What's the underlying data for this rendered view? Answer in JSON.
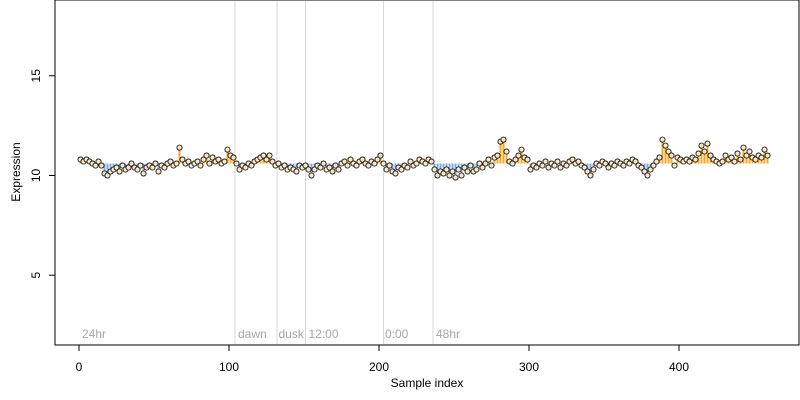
{
  "chart_data": {
    "type": "scatter",
    "xlabel": "Sample index",
    "ylabel": "Expression",
    "xlim": [
      -16,
      480
    ],
    "ylim": [
      1.5,
      18.8
    ],
    "xticks": [
      0,
      100,
      200,
      300,
      400
    ],
    "yticks": [
      5,
      10,
      15
    ],
    "baseline": 10.6,
    "colors": {
      "above": "#f5a623",
      "below": "#7fa8e0",
      "vline": "#d9d9d9",
      "annotation": "#a6a6a6",
      "point_fill": "#f7e6c8",
      "point_stroke": "#000000"
    },
    "vlines": [
      104,
      132,
      151,
      203,
      236
    ],
    "annotations": [
      {
        "x": 2,
        "text": "24hr"
      },
      {
        "x": 106,
        "text": "dawn"
      },
      {
        "x": 133,
        "text": "dusk"
      },
      {
        "x": 153,
        "text": "12:00"
      },
      {
        "x": 204,
        "text": "0:00"
      },
      {
        "x": 238,
        "text": "48hr"
      }
    ],
    "points": [
      [
        1,
        10.8
      ],
      [
        3,
        10.7
      ],
      [
        5,
        10.8
      ],
      [
        7,
        10.7
      ],
      [
        9,
        10.6
      ],
      [
        11,
        10.5
      ],
      [
        13,
        10.7
      ],
      [
        15,
        10.5
      ],
      [
        17,
        10.1
      ],
      [
        19,
        10.0
      ],
      [
        21,
        10.2
      ],
      [
        23,
        10.3
      ],
      [
        25,
        10.4
      ],
      [
        27,
        10.2
      ],
      [
        29,
        10.5
      ],
      [
        31,
        10.3
      ],
      [
        33,
        10.4
      ],
      [
        35,
        10.6
      ],
      [
        37,
        10.4
      ],
      [
        39,
        10.3
      ],
      [
        41,
        10.5
      ],
      [
        43,
        10.1
      ],
      [
        45,
        10.4
      ],
      [
        47,
        10.5
      ],
      [
        49,
        10.4
      ],
      [
        51,
        10.6
      ],
      [
        53,
        10.2
      ],
      [
        55,
        10.5
      ],
      [
        57,
        10.4
      ],
      [
        59,
        10.6
      ],
      [
        61,
        10.7
      ],
      [
        63,
        10.5
      ],
      [
        65,
        10.6
      ],
      [
        67,
        11.4
      ],
      [
        69,
        10.8
      ],
      [
        71,
        10.6
      ],
      [
        73,
        10.7
      ],
      [
        75,
        10.5
      ],
      [
        77,
        10.6
      ],
      [
        79,
        10.7
      ],
      [
        81,
        10.5
      ],
      [
        83,
        10.8
      ],
      [
        85,
        11.0
      ],
      [
        87,
        10.6
      ],
      [
        89,
        10.9
      ],
      [
        91,
        10.7
      ],
      [
        93,
        10.8
      ],
      [
        95,
        10.6
      ],
      [
        97,
        10.7
      ],
      [
        99,
        11.3
      ],
      [
        101,
        11.0
      ],
      [
        103,
        10.9
      ],
      [
        105,
        10.6
      ],
      [
        107,
        10.3
      ],
      [
        109,
        10.5
      ],
      [
        111,
        10.4
      ],
      [
        113,
        10.6
      ],
      [
        115,
        10.5
      ],
      [
        117,
        10.7
      ],
      [
        119,
        10.8
      ],
      [
        121,
        10.9
      ],
      [
        123,
        11.0
      ],
      [
        125,
        10.8
      ],
      [
        127,
        11.0
      ],
      [
        129,
        10.7
      ],
      [
        131,
        10.5
      ],
      [
        133,
        10.6
      ],
      [
        135,
        10.4
      ],
      [
        137,
        10.5
      ],
      [
        139,
        10.3
      ],
      [
        141,
        10.4
      ],
      [
        143,
        10.3
      ],
      [
        145,
        10.2
      ],
      [
        147,
        10.5
      ],
      [
        149,
        10.4
      ],
      [
        151,
        10.5
      ],
      [
        153,
        10.3
      ],
      [
        155,
        10.0
      ],
      [
        157,
        10.3
      ],
      [
        159,
        10.5
      ],
      [
        161,
        10.4
      ],
      [
        163,
        10.6
      ],
      [
        165,
        10.3
      ],
      [
        167,
        10.4
      ],
      [
        169,
        10.2
      ],
      [
        171,
        10.5
      ],
      [
        173,
        10.3
      ],
      [
        175,
        10.6
      ],
      [
        177,
        10.7
      ],
      [
        179,
        10.5
      ],
      [
        181,
        10.8
      ],
      [
        183,
        10.6
      ],
      [
        185,
        10.5
      ],
      [
        187,
        10.7
      ],
      [
        189,
        10.8
      ],
      [
        191,
        10.6
      ],
      [
        193,
        10.5
      ],
      [
        195,
        10.7
      ],
      [
        197,
        10.6
      ],
      [
        199,
        10.8
      ],
      [
        201,
        11.0
      ],
      [
        203,
        10.6
      ],
      [
        205,
        10.3
      ],
      [
        207,
        10.5
      ],
      [
        209,
        10.2
      ],
      [
        211,
        10.1
      ],
      [
        213,
        10.4
      ],
      [
        215,
        10.3
      ],
      [
        217,
        10.5
      ],
      [
        219,
        10.4
      ],
      [
        221,
        10.7
      ],
      [
        223,
        10.5
      ],
      [
        225,
        10.6
      ],
      [
        227,
        10.8
      ],
      [
        229,
        10.7
      ],
      [
        231,
        10.6
      ],
      [
        233,
        10.8
      ],
      [
        235,
        10.7
      ],
      [
        237,
        10.3
      ],
      [
        239,
        10.0
      ],
      [
        241,
        10.2
      ],
      [
        243,
        10.1
      ],
      [
        245,
        10.3
      ],
      [
        247,
        10.0
      ],
      [
        249,
        10.2
      ],
      [
        251,
        9.9
      ],
      [
        253,
        10.3
      ],
      [
        255,
        10.0
      ],
      [
        257,
        10.4
      ],
      [
        259,
        10.2
      ],
      [
        261,
        10.5
      ],
      [
        263,
        10.2
      ],
      [
        265,
        10.3
      ],
      [
        267,
        10.6
      ],
      [
        269,
        10.4
      ],
      [
        271,
        10.6
      ],
      [
        273,
        10.8
      ],
      [
        275,
        10.5
      ],
      [
        277,
        10.9
      ],
      [
        279,
        11.0
      ],
      [
        281,
        11.7
      ],
      [
        283,
        11.8
      ],
      [
        285,
        11.2
      ],
      [
        287,
        10.7
      ],
      [
        289,
        10.6
      ],
      [
        291,
        10.8
      ],
      [
        293,
        11.0
      ],
      [
        295,
        11.3
      ],
      [
        297,
        10.9
      ],
      [
        299,
        10.8
      ],
      [
        301,
        10.3
      ],
      [
        303,
        10.5
      ],
      [
        305,
        10.4
      ],
      [
        307,
        10.6
      ],
      [
        309,
        10.5
      ],
      [
        311,
        10.7
      ],
      [
        313,
        10.4
      ],
      [
        315,
        10.6
      ],
      [
        317,
        10.5
      ],
      [
        319,
        10.7
      ],
      [
        321,
        10.4
      ],
      [
        323,
        10.6
      ],
      [
        325,
        10.5
      ],
      [
        327,
        10.7
      ],
      [
        329,
        10.8
      ],
      [
        331,
        10.6
      ],
      [
        333,
        10.7
      ],
      [
        335,
        10.5
      ],
      [
        337,
        10.4
      ],
      [
        339,
        10.2
      ],
      [
        341,
        10.0
      ],
      [
        343,
        10.3
      ],
      [
        345,
        10.6
      ],
      [
        347,
        10.5
      ],
      [
        349,
        10.7
      ],
      [
        351,
        10.6
      ],
      [
        353,
        10.4
      ],
      [
        355,
        10.6
      ],
      [
        357,
        10.5
      ],
      [
        359,
        10.7
      ],
      [
        361,
        10.6
      ],
      [
        363,
        10.5
      ],
      [
        365,
        10.7
      ],
      [
        367,
        10.6
      ],
      [
        369,
        10.8
      ],
      [
        371,
        10.7
      ],
      [
        373,
        10.5
      ],
      [
        375,
        10.4
      ],
      [
        377,
        10.2
      ],
      [
        379,
        10.0
      ],
      [
        381,
        10.3
      ],
      [
        383,
        10.5
      ],
      [
        385,
        10.7
      ],
      [
        387,
        10.9
      ],
      [
        389,
        11.8
      ],
      [
        391,
        11.5
      ],
      [
        393,
        11.2
      ],
      [
        395,
        11.0
      ],
      [
        397,
        10.5
      ],
      [
        399,
        10.9
      ],
      [
        401,
        10.8
      ],
      [
        403,
        10.7
      ],
      [
        405,
        10.8
      ],
      [
        407,
        10.7
      ],
      [
        409,
        10.9
      ],
      [
        411,
        10.8
      ],
      [
        413,
        11.1
      ],
      [
        415,
        11.5
      ],
      [
        417,
        11.2
      ],
      [
        419,
        11.6
      ],
      [
        421,
        11.0
      ],
      [
        423,
        10.8
      ],
      [
        425,
        10.7
      ],
      [
        427,
        10.6
      ],
      [
        429,
        10.7
      ],
      [
        431,
        11.0
      ],
      [
        433,
        10.8
      ],
      [
        435,
        10.9
      ],
      [
        437,
        10.7
      ],
      [
        439,
        11.1
      ],
      [
        441,
        10.8
      ],
      [
        443,
        11.4
      ],
      [
        445,
        11.0
      ],
      [
        447,
        11.2
      ],
      [
        449,
        10.9
      ],
      [
        451,
        10.8
      ],
      [
        453,
        11.0
      ],
      [
        455,
        10.9
      ],
      [
        457,
        11.3
      ],
      [
        459,
        11.0
      ]
    ]
  }
}
